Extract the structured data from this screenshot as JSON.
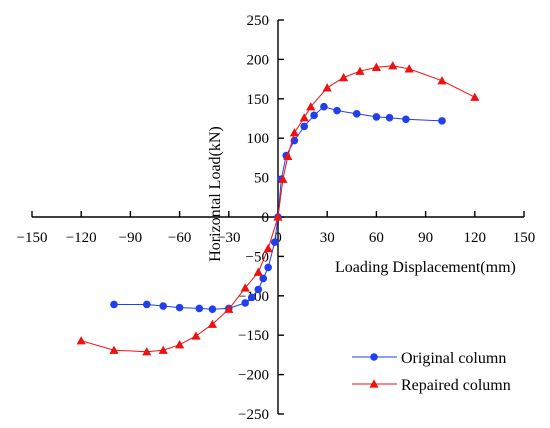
{
  "chart_data": {
    "type": "line",
    "title": "",
    "xlabel": "Loading Displacement(mm)",
    "ylabel": "Horizontal Load(kN)",
    "xlim": [
      -150,
      150
    ],
    "ylim": [
      -250,
      250
    ],
    "x_ticks": [
      -150,
      -120,
      -90,
      -60,
      -30,
      0,
      30,
      60,
      90,
      120,
      150
    ],
    "y_ticks": [
      -250,
      -200,
      -150,
      -100,
      -50,
      0,
      50,
      100,
      150,
      200,
      250
    ],
    "x_tick_labels": [
      "−150",
      "−120",
      "−90",
      "−60",
      "−30",
      "0",
      "30",
      "60",
      "90",
      "120",
      "150"
    ],
    "y_tick_labels": [
      "−250",
      "−200",
      "−150",
      "−100",
      "−50",
      "0",
      "50",
      "100",
      "150",
      "200",
      "250"
    ],
    "grid": false,
    "legend_position": "bottom-right",
    "series": [
      {
        "name": "Original column",
        "color": "#1f3ff0",
        "marker": "circle",
        "points": [
          [
            -100,
            -111
          ],
          [
            -80,
            -111
          ],
          [
            -70,
            -113
          ],
          [
            -60,
            -115
          ],
          [
            -48,
            -116
          ],
          [
            -40,
            -117
          ],
          [
            -30,
            -116
          ],
          [
            -20,
            -109
          ],
          [
            -16,
            -102
          ],
          [
            -12,
            -92
          ],
          [
            -9,
            -78
          ],
          [
            -6,
            -64
          ],
          [
            -2,
            -32
          ],
          [
            0,
            0
          ],
          [
            2,
            48
          ],
          [
            5,
            78
          ],
          [
            10,
            97
          ],
          [
            16,
            115
          ],
          [
            22,
            129
          ],
          [
            28,
            140
          ],
          [
            36,
            135
          ],
          [
            48,
            131
          ],
          [
            60,
            127
          ],
          [
            68,
            126
          ],
          [
            78,
            124
          ],
          [
            100,
            122
          ]
        ]
      },
      {
        "name": "Repaired column",
        "color": "#ee1111",
        "marker": "triangle",
        "points": [
          [
            -120,
            -157
          ],
          [
            -100,
            -169
          ],
          [
            -80,
            -171
          ],
          [
            -70,
            -169
          ],
          [
            -60,
            -162
          ],
          [
            -50,
            -151
          ],
          [
            -40,
            -136
          ],
          [
            -30,
            -117
          ],
          [
            -20,
            -90
          ],
          [
            -12,
            -70
          ],
          [
            -6,
            -40
          ],
          [
            0,
            0
          ],
          [
            3,
            48
          ],
          [
            6,
            77
          ],
          [
            10,
            107
          ],
          [
            16,
            126
          ],
          [
            20,
            140
          ],
          [
            30,
            164
          ],
          [
            40,
            177
          ],
          [
            50,
            185
          ],
          [
            60,
            190
          ],
          [
            70,
            192
          ],
          [
            80,
            188
          ],
          [
            100,
            173
          ],
          [
            120,
            152
          ]
        ]
      }
    ]
  }
}
